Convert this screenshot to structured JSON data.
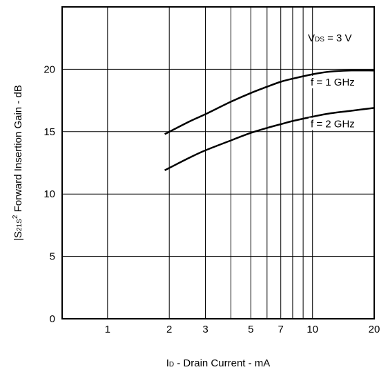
{
  "chart_data": {
    "type": "line",
    "x_scale": "log",
    "xlim": [
      0.6,
      20
    ],
    "ylim": [
      0,
      25
    ],
    "grid": true,
    "x_ticks": [
      1,
      2,
      3,
      5,
      7,
      10,
      20
    ],
    "x_tick_labels": [
      "1",
      "2",
      "3",
      "5",
      "7",
      "10",
      "20"
    ],
    "x_minor_grid": [
      4,
      6,
      8,
      9
    ],
    "y_ticks": [
      0,
      5,
      10,
      15,
      20
    ],
    "y_tick_labels": [
      "0",
      "5",
      "10",
      "15",
      "20"
    ],
    "xlabel": {
      "main": "I",
      "sub": "D",
      "rest": " - Drain Current - mA"
    },
    "ylabel": {
      "pre": "|S",
      "sub": "21S",
      "sup": "2",
      "rest": " Forward Insertion Gain - dB"
    },
    "annotation": {
      "main": "V",
      "sub": "DS",
      "rest": " = 3 V"
    },
    "series": [
      {
        "name": "f = 1 GHz",
        "x": [
          1.9,
          2.5,
          3,
          4,
          5,
          6,
          7,
          8,
          10,
          12,
          15,
          20
        ],
        "y": [
          14.8,
          15.8,
          16.4,
          17.4,
          18.1,
          18.6,
          19.0,
          19.25,
          19.6,
          19.8,
          19.9,
          19.9
        ]
      },
      {
        "name": "f = 2 GHz",
        "x": [
          1.9,
          2.5,
          3,
          4,
          5,
          6,
          7,
          8,
          10,
          12,
          15,
          20
        ],
        "y": [
          11.9,
          12.9,
          13.5,
          14.3,
          14.9,
          15.3,
          15.6,
          15.85,
          16.2,
          16.45,
          16.65,
          16.9
        ]
      }
    ]
  }
}
